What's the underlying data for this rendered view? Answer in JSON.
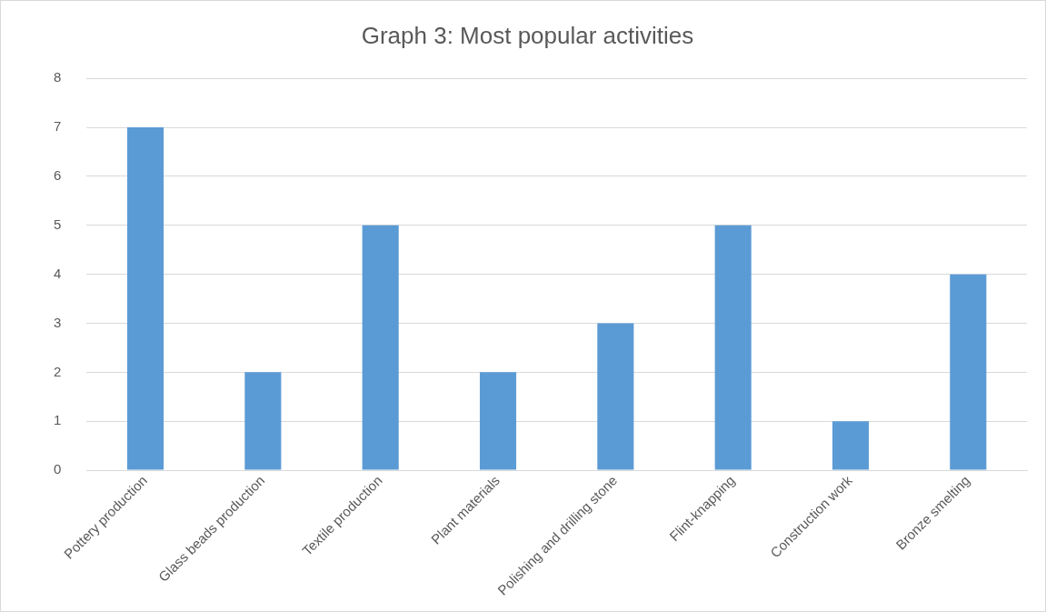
{
  "chart_data": {
    "type": "bar",
    "title": "Graph 3: Most popular activities",
    "categories": [
      "Pottery production",
      "Glass beads production",
      "Textile production",
      "Plant materials",
      "Polishing and drilling stone",
      "Flint-knapping",
      "Construction work",
      "Bronze smelting"
    ],
    "values": [
      7,
      2,
      5,
      2,
      3,
      5,
      1,
      4
    ],
    "color": "#5b9bd5",
    "ylim": [
      0,
      8
    ],
    "yticks": [
      0,
      1,
      2,
      3,
      4,
      5,
      6,
      7,
      8
    ],
    "grid": "y",
    "legend": false
  }
}
